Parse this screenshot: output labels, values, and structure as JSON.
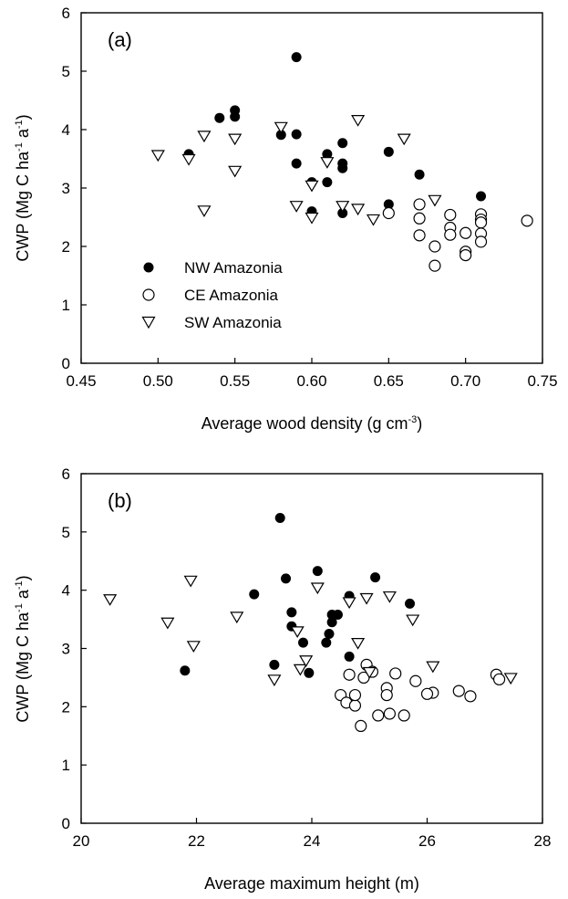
{
  "chart_data": [
    {
      "type": "scatter",
      "panel_label": "(a)",
      "xlabel": "Average wood density (g cm",
      "xlabel_sup": "-3",
      "xlabel_end": ")",
      "ylabel": "CWP (Mg C ha",
      "ylabel_sup1": "-1",
      "ylabel_mid": " a",
      "ylabel_sup2": "-1",
      "ylabel_end": ")",
      "xlim": [
        0.45,
        0.75
      ],
      "ylim": [
        0,
        6
      ],
      "xticks": [
        0.45,
        0.5,
        0.55,
        0.6,
        0.65,
        0.7,
        0.75
      ],
      "xtick_labels": [
        "0.45",
        "0.50",
        "0.55",
        "0.60",
        "0.65",
        "0.70",
        "0.75"
      ],
      "yticks": [
        0,
        1,
        2,
        3,
        4,
        5,
        6
      ],
      "ytick_labels": [
        "0",
        "1",
        "2",
        "3",
        "4",
        "5",
        "6"
      ],
      "grid": false,
      "legend_position": "bottom-left",
      "series": [
        {
          "name": "NW Amazonia",
          "marker": "filled-circle",
          "points": [
            [
              0.52,
              3.58
            ],
            [
              0.54,
              4.2
            ],
            [
              0.55,
              4.33
            ],
            [
              0.55,
              4.22
            ],
            [
              0.58,
              3.91
            ],
            [
              0.59,
              5.24
            ],
            [
              0.59,
              3.92
            ],
            [
              0.59,
              3.42
            ],
            [
              0.6,
              3.1
            ],
            [
              0.6,
              2.6
            ],
            [
              0.61,
              3.1
            ],
            [
              0.61,
              3.58
            ],
            [
              0.62,
              3.77
            ],
            [
              0.62,
              3.42
            ],
            [
              0.62,
              3.34
            ],
            [
              0.62,
              2.57
            ],
            [
              0.65,
              3.62
            ],
            [
              0.65,
              2.72
            ],
            [
              0.67,
              3.23
            ],
            [
              0.71,
              2.86
            ]
          ]
        },
        {
          "name": "CE Amazonia",
          "marker": "open-circle",
          "points": [
            [
              0.65,
              2.57
            ],
            [
              0.67,
              2.72
            ],
            [
              0.67,
              2.48
            ],
            [
              0.67,
              2.19
            ],
            [
              0.68,
              2.0
            ],
            [
              0.68,
              1.67
            ],
            [
              0.69,
              2.54
            ],
            [
              0.69,
              2.32
            ],
            [
              0.69,
              2.2
            ],
            [
              0.7,
              2.23
            ],
            [
              0.7,
              1.91
            ],
            [
              0.7,
              1.85
            ],
            [
              0.71,
              2.55
            ],
            [
              0.71,
              2.46
            ],
            [
              0.71,
              2.41
            ],
            [
              0.71,
              2.22
            ],
            [
              0.71,
              2.08
            ],
            [
              0.74,
              2.44
            ]
          ]
        },
        {
          "name": "SW Amazonia",
          "marker": "open-triangle-down",
          "points": [
            [
              0.5,
              3.57
            ],
            [
              0.52,
              3.5
            ],
            [
              0.53,
              3.9
            ],
            [
              0.53,
              2.62
            ],
            [
              0.55,
              3.85
            ],
            [
              0.55,
              3.3
            ],
            [
              0.58,
              4.05
            ],
            [
              0.59,
              2.7
            ],
            [
              0.6,
              3.05
            ],
            [
              0.6,
              2.5
            ],
            [
              0.61,
              3.45
            ],
            [
              0.62,
              2.7
            ],
            [
              0.63,
              4.17
            ],
            [
              0.63,
              2.65
            ],
            [
              0.64,
              2.47
            ],
            [
              0.66,
              3.85
            ],
            [
              0.68,
              2.8
            ]
          ]
        }
      ]
    },
    {
      "type": "scatter",
      "panel_label": "(b)",
      "xlabel": "Average maximum height (m)",
      "ylabel": "CWP (Mg C ha",
      "ylabel_sup1": "-1",
      "ylabel_mid": " a",
      "ylabel_sup2": "-1",
      "ylabel_end": ")",
      "xlim": [
        20,
        28
      ],
      "ylim": [
        0,
        6
      ],
      "xticks": [
        20,
        22,
        24,
        26,
        28
      ],
      "xtick_labels": [
        "20",
        "22",
        "24",
        "26",
        "28"
      ],
      "yticks": [
        0,
        1,
        2,
        3,
        4,
        5,
        6
      ],
      "ytick_labels": [
        "0",
        "1",
        "2",
        "3",
        "4",
        "5",
        "6"
      ],
      "grid": false,
      "series": [
        {
          "marker": "filled-circle",
          "points": [
            [
              21.8,
              2.62
            ],
            [
              23.0,
              3.93
            ],
            [
              23.35,
              2.72
            ],
            [
              23.45,
              5.24
            ],
            [
              23.55,
              4.2
            ],
            [
              23.65,
              3.62
            ],
            [
              23.65,
              3.38
            ],
            [
              23.85,
              3.1
            ],
            [
              23.95,
              2.58
            ],
            [
              24.1,
              4.33
            ],
            [
              24.25,
              3.1
            ],
            [
              24.3,
              3.25
            ],
            [
              24.35,
              3.58
            ],
            [
              24.35,
              3.45
            ],
            [
              24.45,
              3.58
            ],
            [
              24.65,
              3.9
            ],
            [
              24.65,
              2.86
            ],
            [
              25.1,
              4.22
            ],
            [
              25.7,
              3.77
            ]
          ]
        },
        {
          "marker": "open-circle",
          "points": [
            [
              24.5,
              2.2
            ],
            [
              24.6,
              2.07
            ],
            [
              24.65,
              2.55
            ],
            [
              24.75,
              2.02
            ],
            [
              24.75,
              2.2
            ],
            [
              24.85,
              1.67
            ],
            [
              24.9,
              2.5
            ],
            [
              24.95,
              2.72
            ],
            [
              25.05,
              2.6
            ],
            [
              25.15,
              1.85
            ],
            [
              25.3,
              2.32
            ],
            [
              25.3,
              2.2
            ],
            [
              25.35,
              1.88
            ],
            [
              25.45,
              2.57
            ],
            [
              25.6,
              1.85
            ],
            [
              25.8,
              2.44
            ],
            [
              26.1,
              2.24
            ],
            [
              26.0,
              2.22
            ],
            [
              26.55,
              2.27
            ],
            [
              26.75,
              2.18
            ],
            [
              27.2,
              2.55
            ],
            [
              27.25,
              2.47
            ]
          ]
        },
        {
          "marker": "open-triangle-down",
          "points": [
            [
              20.5,
              3.85
            ],
            [
              21.5,
              3.45
            ],
            [
              21.9,
              4.17
            ],
            [
              21.95,
              3.05
            ],
            [
              22.7,
              3.55
            ],
            [
              23.35,
              2.47
            ],
            [
              23.75,
              3.3
            ],
            [
              23.8,
              2.65
            ],
            [
              23.9,
              2.8
            ],
            [
              24.1,
              4.05
            ],
            [
              24.65,
              3.8
            ],
            [
              24.8,
              3.1
            ],
            [
              24.95,
              3.87
            ],
            [
              25.0,
              2.6
            ],
            [
              25.35,
              3.9
            ],
            [
              25.75,
              3.5
            ],
            [
              26.1,
              2.7
            ],
            [
              27.45,
              2.5
            ]
          ]
        }
      ]
    }
  ]
}
